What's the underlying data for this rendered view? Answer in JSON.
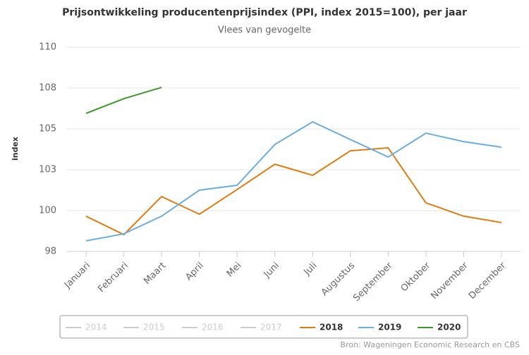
{
  "chart_data": {
    "type": "line",
    "title": "Prijsontwikkeling producentenprijsindex (PPI, index 2015=100), per jaar",
    "subtitle": "Vlees van gevogelte",
    "y_label": "index",
    "source": "Bron: Wageningen Economic Research en CBS",
    "categories": [
      "Januari",
      "Februari",
      "Maart",
      "April",
      "Mei",
      "Juni",
      "Juli",
      "Augustus",
      "September",
      "Oktober",
      "November",
      "December"
    ],
    "ylim": [
      97.5,
      110
    ],
    "yticks": [
      {
        "value": 97.5,
        "label": "98"
      },
      100,
      {
        "value": 102.5,
        "label": "103"
      },
      105,
      {
        "value": 107.5,
        "label": "108"
      },
      110
    ],
    "grid": true,
    "series": [
      {
        "name": "2014",
        "color": "#cccccc",
        "visible": false,
        "values": [
          null,
          null,
          null,
          null,
          null,
          null,
          null,
          null,
          null,
          null,
          null,
          null
        ]
      },
      {
        "name": "2015",
        "color": "#cccccc",
        "visible": false,
        "values": [
          null,
          null,
          null,
          null,
          null,
          null,
          null,
          null,
          null,
          null,
          null,
          null
        ]
      },
      {
        "name": "2016",
        "color": "#cccccc",
        "visible": false,
        "values": [
          null,
          null,
          null,
          null,
          null,
          null,
          null,
          null,
          null,
          null,
          null,
          null
        ]
      },
      {
        "name": "2017",
        "color": "#cccccc",
        "visible": false,
        "values": [
          null,
          null,
          null,
          null,
          null,
          null,
          null,
          null,
          null,
          null,
          null,
          null
        ]
      },
      {
        "name": "2018",
        "color": "#e07b10",
        "visible": true,
        "values": [
          99.66,
          98.53,
          100.86,
          99.78,
          101.29,
          102.84,
          102.16,
          103.66,
          103.84,
          100.47,
          99.66,
          99.27
        ]
      },
      {
        "name": "2019",
        "color": "#6aaee0",
        "visible": true,
        "values": [
          98.15,
          98.58,
          99.66,
          101.25,
          101.55,
          104.05,
          105.43,
          104.35,
          103.28,
          104.74,
          104.22,
          103.88
        ]
      },
      {
        "name": "2020",
        "color": "#3c9a2a",
        "visible": true,
        "values": [
          105.95,
          106.85,
          107.54,
          null,
          null,
          null,
          null,
          null,
          null,
          null,
          null,
          null
        ]
      }
    ]
  }
}
